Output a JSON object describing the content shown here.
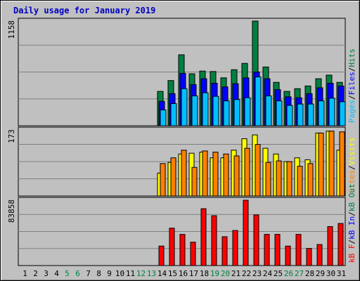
{
  "chart_data": [
    {
      "type": "bar",
      "title": "Daily usage for January 2019",
      "panel": "top",
      "y_max_label": "1158",
      "ylim": [
        0,
        1158
      ],
      "categories": [
        "1",
        "2",
        "3",
        "4",
        "5",
        "6",
        "7",
        "8",
        "9",
        "10",
        "11",
        "12",
        "13",
        "14",
        "15",
        "16",
        "17",
        "18",
        "19",
        "20",
        "21",
        "22",
        "23",
        "24",
        "25",
        "26",
        "27",
        "28",
        "29",
        "30",
        "31"
      ],
      "weekend_days": [
        "5",
        "6",
        "12",
        "13",
        "19",
        "20",
        "26",
        "27"
      ],
      "series": [
        {
          "name": "Hits",
          "color": "#008040",
          "values": [
            null,
            null,
            null,
            null,
            null,
            null,
            null,
            null,
            null,
            null,
            null,
            null,
            null,
            380,
            500,
            785,
            575,
            605,
            600,
            530,
            620,
            690,
            1158,
            650,
            480,
            380,
            410,
            440,
            520,
            560,
            480
          ]
        },
        {
          "name": "Files",
          "color": "#0000ff",
          "values": [
            null,
            null,
            null,
            null,
            null,
            null,
            null,
            null,
            null,
            null,
            null,
            null,
            null,
            270,
            355,
            580,
            455,
            520,
            470,
            430,
            465,
            530,
            595,
            520,
            400,
            320,
            310,
            355,
            420,
            470,
            440
          ]
        },
        {
          "name": "Pages",
          "color": "#00bfff",
          "values": [
            null,
            null,
            null,
            null,
            null,
            null,
            null,
            null,
            null,
            null,
            null,
            null,
            null,
            175,
            245,
            410,
            330,
            365,
            325,
            275,
            290,
            310,
            540,
            330,
            275,
            225,
            240,
            240,
            275,
            305,
            265
          ]
        }
      ],
      "right_labels": [
        "Pages",
        "/",
        "Files",
        "/",
        "Hits"
      ]
    },
    {
      "type": "bar",
      "panel": "middle",
      "y_max_label": "173",
      "ylim": [
        0,
        173
      ],
      "series": [
        {
          "name": "Visits",
          "color": "#ffff00",
          "values": [
            null,
            null,
            null,
            null,
            null,
            null,
            null,
            null,
            null,
            null,
            null,
            null,
            null,
            60,
            88,
            110,
            112,
            115,
            100,
            100,
            120,
            150,
            160,
            125,
            110,
            90,
            100,
            95,
            165,
            170,
            120
          ]
        },
        {
          "name": "Sites",
          "color": "#ff8000",
          "values": [
            null,
            null,
            null,
            null,
            null,
            null,
            null,
            null,
            null,
            null,
            null,
            null,
            null,
            85,
            100,
            120,
            75,
            118,
            115,
            110,
            105,
            125,
            135,
            88,
            92,
            90,
            78,
            85,
            165,
            170,
            168
          ]
        }
      ],
      "right_labels": [
        "Sites",
        "/",
        "Visits"
      ]
    },
    {
      "type": "bar",
      "panel": "bottom",
      "y_max_label": "83858",
      "ylim": [
        0,
        83858
      ],
      "series": [
        {
          "name": "kB F",
          "color": "#ff0000",
          "values": [
            null,
            null,
            null,
            null,
            null,
            null,
            null,
            null,
            null,
            null,
            null,
            null,
            null,
            25000,
            48000,
            40000,
            30000,
            73000,
            64000,
            37000,
            45000,
            83858,
            65000,
            40000,
            40000,
            25000,
            40000,
            22000,
            27000,
            50000,
            54000
          ]
        }
      ],
      "right_labels": [
        "kB F",
        "/",
        "kB In",
        "/",
        "kB Out"
      ],
      "right_label_colors": [
        "#ff0000",
        "#000000",
        "#0000ff",
        "#000000",
        "#008040"
      ]
    }
  ],
  "colors": {
    "title": "#0000c0",
    "weekday_label": "#000000",
    "weekend_label": "#008040",
    "gridline": "#808080",
    "panel_bg": "#c0c0c0"
  }
}
